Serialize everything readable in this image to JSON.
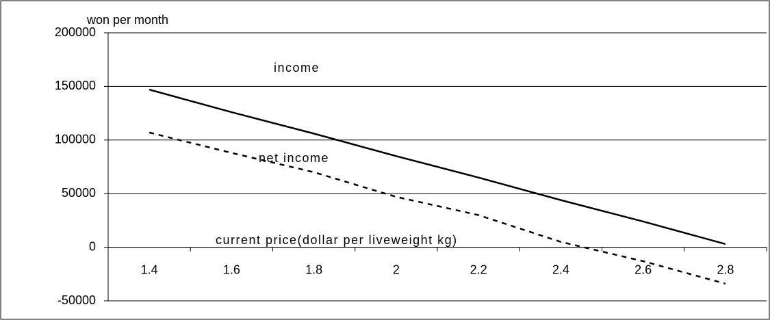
{
  "chart_data": {
    "type": "line",
    "y_label": "won per month",
    "annotations": [
      "income",
      "net income",
      "current price(dollar per liveweight kg)"
    ],
    "categories": [
      "1.4",
      "1.6",
      "1.8",
      "2",
      "2.2",
      "2.4",
      "2.6",
      "2.8"
    ],
    "series": [
      {
        "name": "income",
        "color": "#000000",
        "line_style": "solid",
        "values": [
          147000,
          126000,
          106000,
          85000,
          65000,
          44000,
          24000,
          3000
        ]
      },
      {
        "name": "net income",
        "color": "#000000",
        "line_style": "dashed",
        "values": [
          107000,
          88000,
          70000,
          47000,
          30000,
          5000,
          -13000,
          -34000
        ]
      }
    ],
    "ylim": [
      -50000,
      200000
    ],
    "yticks": [
      -50000,
      0,
      50000,
      100000,
      150000,
      200000
    ],
    "grid": true
  }
}
